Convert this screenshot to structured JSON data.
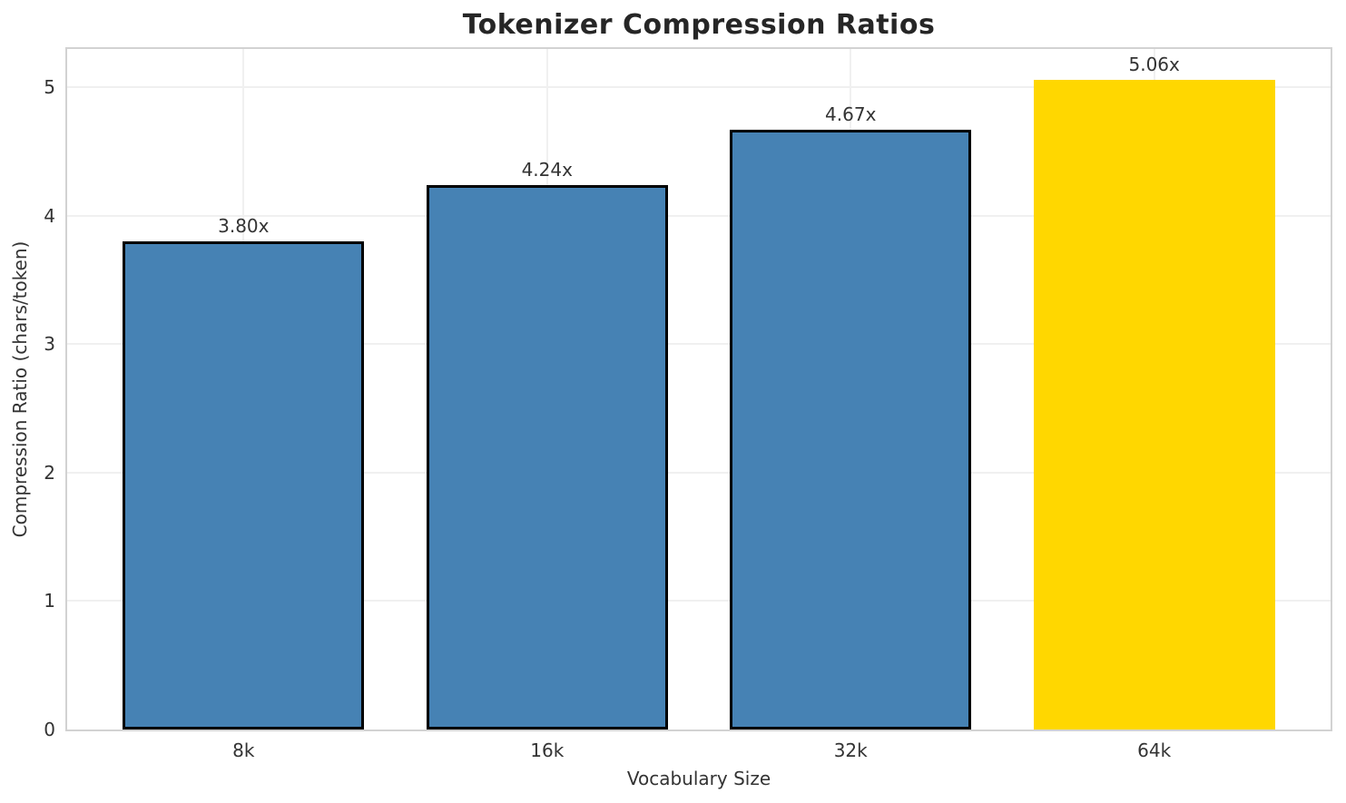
{
  "chart_data": {
    "type": "bar",
    "title": "Tokenizer Compression Ratios",
    "xlabel": "Vocabulary Size",
    "ylabel": "Compression Ratio (chars/token)",
    "categories": [
      "8k",
      "16k",
      "32k",
      "64k"
    ],
    "values": [
      3.8,
      4.24,
      4.67,
      5.06
    ],
    "value_labels": [
      "3.80x",
      "4.24x",
      "4.67x",
      "5.06x"
    ],
    "bar_colors": [
      "#4682B4",
      "#4682B4",
      "#4682B4",
      "#FFD700"
    ],
    "bar_edge_colors": [
      "#000000",
      "#000000",
      "#000000",
      "#FFD700"
    ],
    "ylim": [
      0,
      5.3
    ],
    "yticks": [
      0,
      1,
      2,
      3,
      4,
      5
    ],
    "grid": true,
    "legend_position": "none",
    "colors": {
      "bar_default": "#4682B4",
      "bar_highlight": "#FFD700",
      "bar_edge": "#000000",
      "grid": "#f0f0f0",
      "spine": "#d2d2d2",
      "text": "#333333",
      "title_text": "#262626",
      "background": "#ffffff"
    }
  }
}
